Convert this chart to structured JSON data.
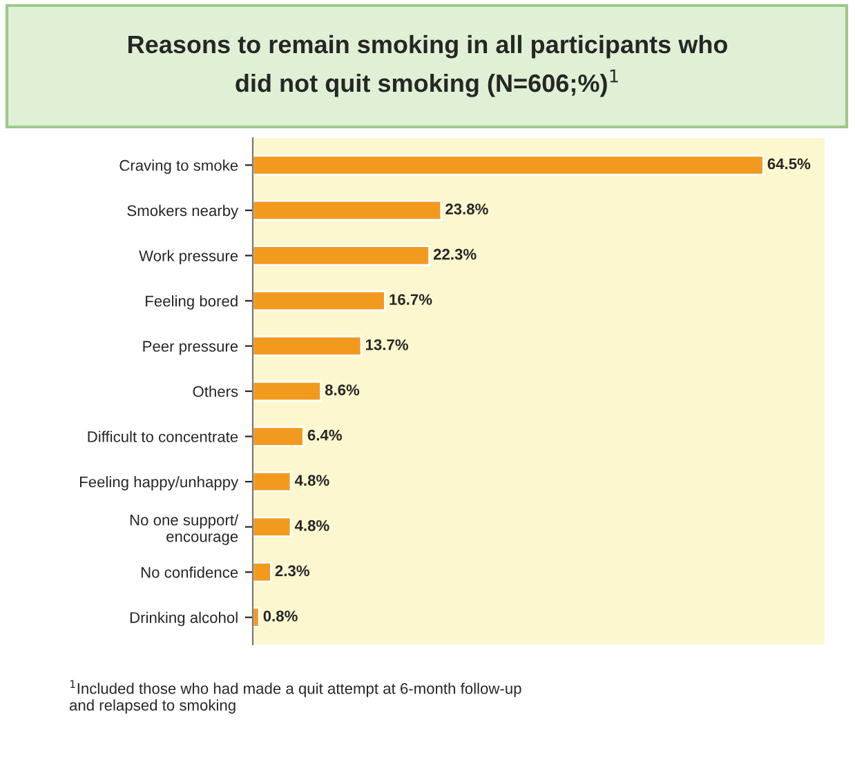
{
  "chart_data": {
    "type": "bar",
    "orientation": "horizontal",
    "title": "Reasons to remain smoking in all participants who\ndid not quit smoking (N=606;%)$^{1}$",
    "categories": [
      "Craving to smoke",
      "Smokers nearby",
      "Work pressure",
      "Feeling bored",
      "Peer pressure",
      "Others",
      "Difficult to concentrate",
      "Feeling happy/unhappy",
      "No one support/\nencourage",
      "No confidence",
      "Drinking alcohol"
    ],
    "values": [
      64.5,
      23.8,
      22.3,
      16.7,
      13.7,
      8.6,
      6.4,
      4.8,
      4.8,
      2.3,
      0.8
    ],
    "value_labels": [
      "64.5%",
      "23.8%",
      "22.3%",
      "16.7%",
      "13.7%",
      "8.6%",
      "6.4%",
      "4.8%",
      "4.8%",
      "2.3%",
      "0.8%"
    ],
    "color": "#f29a1e",
    "annotations": [
      "$^{1}$Included those who had made a quit attempt at 6-month follow-up\nand relapsed to smoking"
    ]
  }
}
